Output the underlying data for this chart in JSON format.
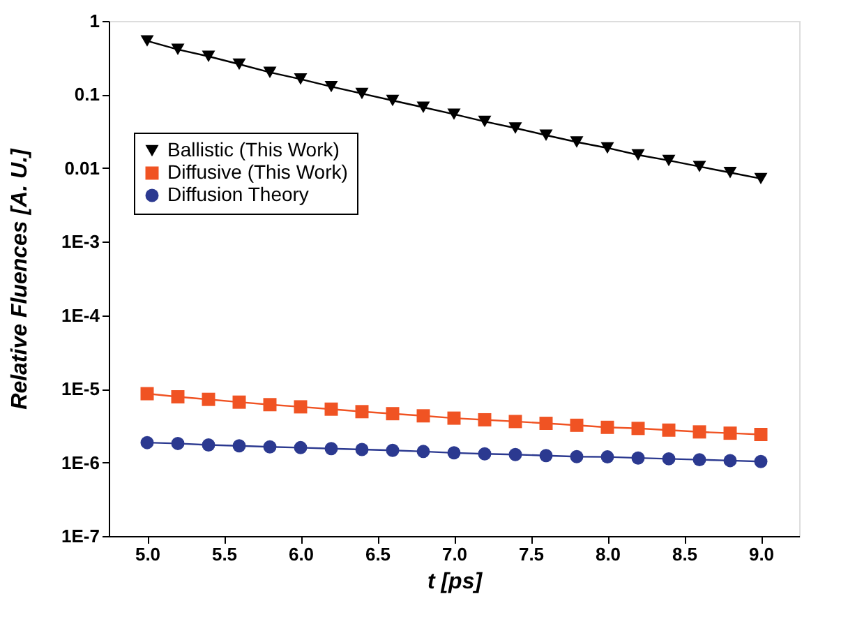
{
  "chart_data": {
    "type": "line",
    "xlabel": "t [ps]",
    "ylabel": "Relative Fluences [A. U.]",
    "x": [
      5.0,
      5.2,
      5.4,
      5.6,
      5.8,
      6.0,
      6.2,
      6.4,
      6.6,
      6.8,
      7.0,
      7.2,
      7.4,
      7.6,
      7.8,
      8.0,
      8.2,
      8.4,
      8.6,
      8.8,
      9.0
    ],
    "series": [
      {
        "name": "Ballistic (This Work)",
        "color": "#000000",
        "marker": "triangle",
        "values": [
          0.535,
          0.41,
          0.33,
          0.258,
          0.2,
          0.162,
          0.128,
          0.103,
          0.083,
          0.067,
          0.054,
          0.043,
          0.035,
          0.028,
          0.0226,
          0.0188,
          0.0151,
          0.0127,
          0.0105,
          0.0087,
          0.0072
        ]
      },
      {
        "name": "Diffusive (This Work)",
        "color": "#f05323",
        "marker": "square",
        "values": [
          8.6e-06,
          7.8e-06,
          7.2e-06,
          6.6e-06,
          6.1e-06,
          5.7e-06,
          5.3e-06,
          4.9e-06,
          4.6e-06,
          4.3e-06,
          4e-06,
          3.8e-06,
          3.6e-06,
          3.4e-06,
          3.2e-06,
          3e-06,
          2.9e-06,
          2.75e-06,
          2.6e-06,
          2.5e-06,
          2.4e-06
        ]
      },
      {
        "name": "Diffusion Theory",
        "color": "#2b3990",
        "marker": "circle",
        "values": [
          1.86e-06,
          1.81e-06,
          1.73e-06,
          1.68e-06,
          1.63e-06,
          1.59e-06,
          1.54e-06,
          1.5e-06,
          1.46e-06,
          1.41e-06,
          1.35e-06,
          1.31e-06,
          1.28e-06,
          1.24e-06,
          1.2e-06,
          1.19e-06,
          1.15e-06,
          1.12e-06,
          1.09e-06,
          1.06e-06,
          1.03e-06
        ]
      }
    ],
    "xlim": [
      4.75,
      9.25
    ],
    "xticks": [
      {
        "value": 5,
        "label": "5.0"
      },
      {
        "value": 5.5,
        "label": "5.5"
      },
      {
        "value": 6,
        "label": "6.0"
      },
      {
        "value": 6.5,
        "label": "6.5"
      },
      {
        "value": 7,
        "label": "7.0"
      },
      {
        "value": 7.5,
        "label": "7.5"
      },
      {
        "value": 8,
        "label": "8.0"
      },
      {
        "value": 8.5,
        "label": "8.5"
      },
      {
        "value": 9,
        "label": "9.0"
      }
    ],
    "ylim": [
      1e-07,
      1
    ],
    "yticks": [
      1,
      0.1,
      0.01,
      {
        "value": 0.001,
        "label": "1E-3"
      },
      {
        "value": 0.0001,
        "label": "1E-4"
      },
      {
        "value": 1e-05,
        "label": "1E-5"
      },
      {
        "value": 1e-06,
        "label": "1E-6"
      },
      {
        "value": 1e-07,
        "label": "1E-7"
      }
    ],
    "log": "y",
    "grid": false,
    "legend": "top left",
    "line_style": "solid"
  }
}
